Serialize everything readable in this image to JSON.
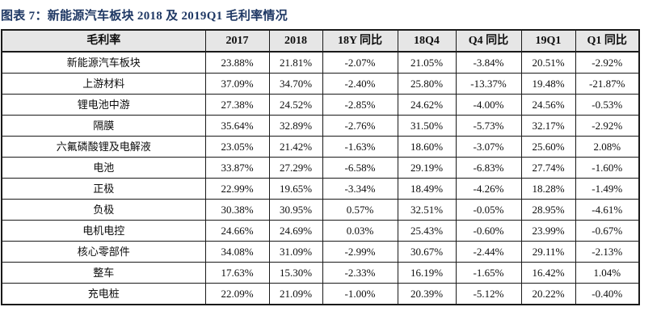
{
  "title": "图表 7：新能源汽车板块 2018 及 2019Q1 毛利率情况",
  "colors": {
    "title_text": "#1f3864",
    "header_bg": "#e6e6e6",
    "border": "#1a1a1a",
    "text": "#0d0d0d"
  },
  "chart_data": {
    "type": "table",
    "title": "图表 7：新能源汽车板块 2018 及 2019Q1 毛利率情况",
    "columns": [
      "毛利率",
      "2017",
      "2018",
      "18Y 同比",
      "18Q4",
      "Q4 同比",
      "19Q1",
      "Q1 同比"
    ],
    "rows": [
      [
        "新能源汽车板块",
        "23.88%",
        "21.81%",
        "-2.07%",
        "21.05%",
        "-3.84%",
        "20.51%",
        "-2.92%"
      ],
      [
        "上游材料",
        "37.09%",
        "34.70%",
        "-2.40%",
        "25.80%",
        "-13.37%",
        "19.48%",
        "-21.87%"
      ],
      [
        "锂电池中游",
        "27.38%",
        "24.52%",
        "-2.85%",
        "24.62%",
        "-4.00%",
        "24.56%",
        "-0.53%"
      ],
      [
        "隔膜",
        "35.64%",
        "32.89%",
        "-2.76%",
        "31.50%",
        "-5.73%",
        "32.17%",
        "-2.92%"
      ],
      [
        "六氟磷酸锂及电解液",
        "23.05%",
        "21.42%",
        "-1.63%",
        "18.60%",
        "-3.07%",
        "25.60%",
        "2.08%"
      ],
      [
        "电池",
        "33.87%",
        "27.29%",
        "-6.58%",
        "29.19%",
        "-6.83%",
        "27.74%",
        "-1.60%"
      ],
      [
        "正极",
        "22.99%",
        "19.65%",
        "-3.34%",
        "18.49%",
        "-4.26%",
        "18.28%",
        "-1.49%"
      ],
      [
        "负极",
        "30.38%",
        "30.95%",
        "0.57%",
        "32.51%",
        "-0.05%",
        "28.95%",
        "-4.61%"
      ],
      [
        "电机电控",
        "24.66%",
        "24.69%",
        "0.03%",
        "25.43%",
        "-0.60%",
        "23.99%",
        "-0.67%"
      ],
      [
        "核心零部件",
        "34.08%",
        "31.09%",
        "-2.99%",
        "30.67%",
        "-2.44%",
        "29.11%",
        "-2.13%"
      ],
      [
        "整车",
        "17.63%",
        "15.30%",
        "-2.33%",
        "16.19%",
        "-1.65%",
        "16.42%",
        "1.04%"
      ],
      [
        "充电桩",
        "22.09%",
        "21.09%",
        "-1.00%",
        "20.39%",
        "-5.12%",
        "20.22%",
        "-0.40%"
      ]
    ]
  }
}
